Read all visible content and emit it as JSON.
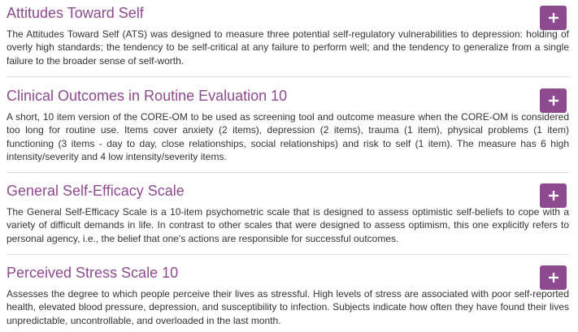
{
  "colors": {
    "accent": "#8e4a8e",
    "text": "#333333",
    "divider": "#dddddd",
    "button_icon": "#ffffff"
  },
  "button_icon": "plus-icon",
  "items": [
    {
      "title": "Attitudes Toward Self",
      "description": "The Attitudes Toward Self (ATS) was designed to measure three potential self-regulatory vulnerabilities to depression: holding of overly high standards; the tendency to be self-critical at any failure to perform well; and the tendency to generalize from a single failure to the broader sense of self-worth."
    },
    {
      "title": "Clinical Outcomes in Routine Evaluation 10",
      "description": "A short, 10 item version of the CORE-OM to be used as screening tool and outcome measure when the CORE-OM is considered too long for routine use. Items cover anxiety (2 items), depression (2 items), trauma (1 item), physical problems (1 item) functioning (3 items - day to day, close relationships, social relationships) and risk to self (1 item). The measure has 6 high intensity/severity and 4 low intensity/severity items."
    },
    {
      "title": "General Self-Efficacy Scale",
      "description": "The General Self-Efficacy Scale is a 10-item psychometric scale that is designed to assess optimistic self-beliefs to cope with a variety of difficult demands in life. In contrast to other scales that were designed to assess optimism, this one explicitly refers to personal agency, i.e., the belief that one's actions are responsible for successful outcomes."
    },
    {
      "title": "Perceived Stress Scale 10",
      "description": "Assesses the degree to which people perceive their lives as stressful. High levels of stress are associated with poor self-reported health, elevated blood pressure, depression, and susceptibility to infection. Subjects indicate how often they have found their lives unpredictable, uncontrollable, and overloaded in the last month."
    }
  ]
}
